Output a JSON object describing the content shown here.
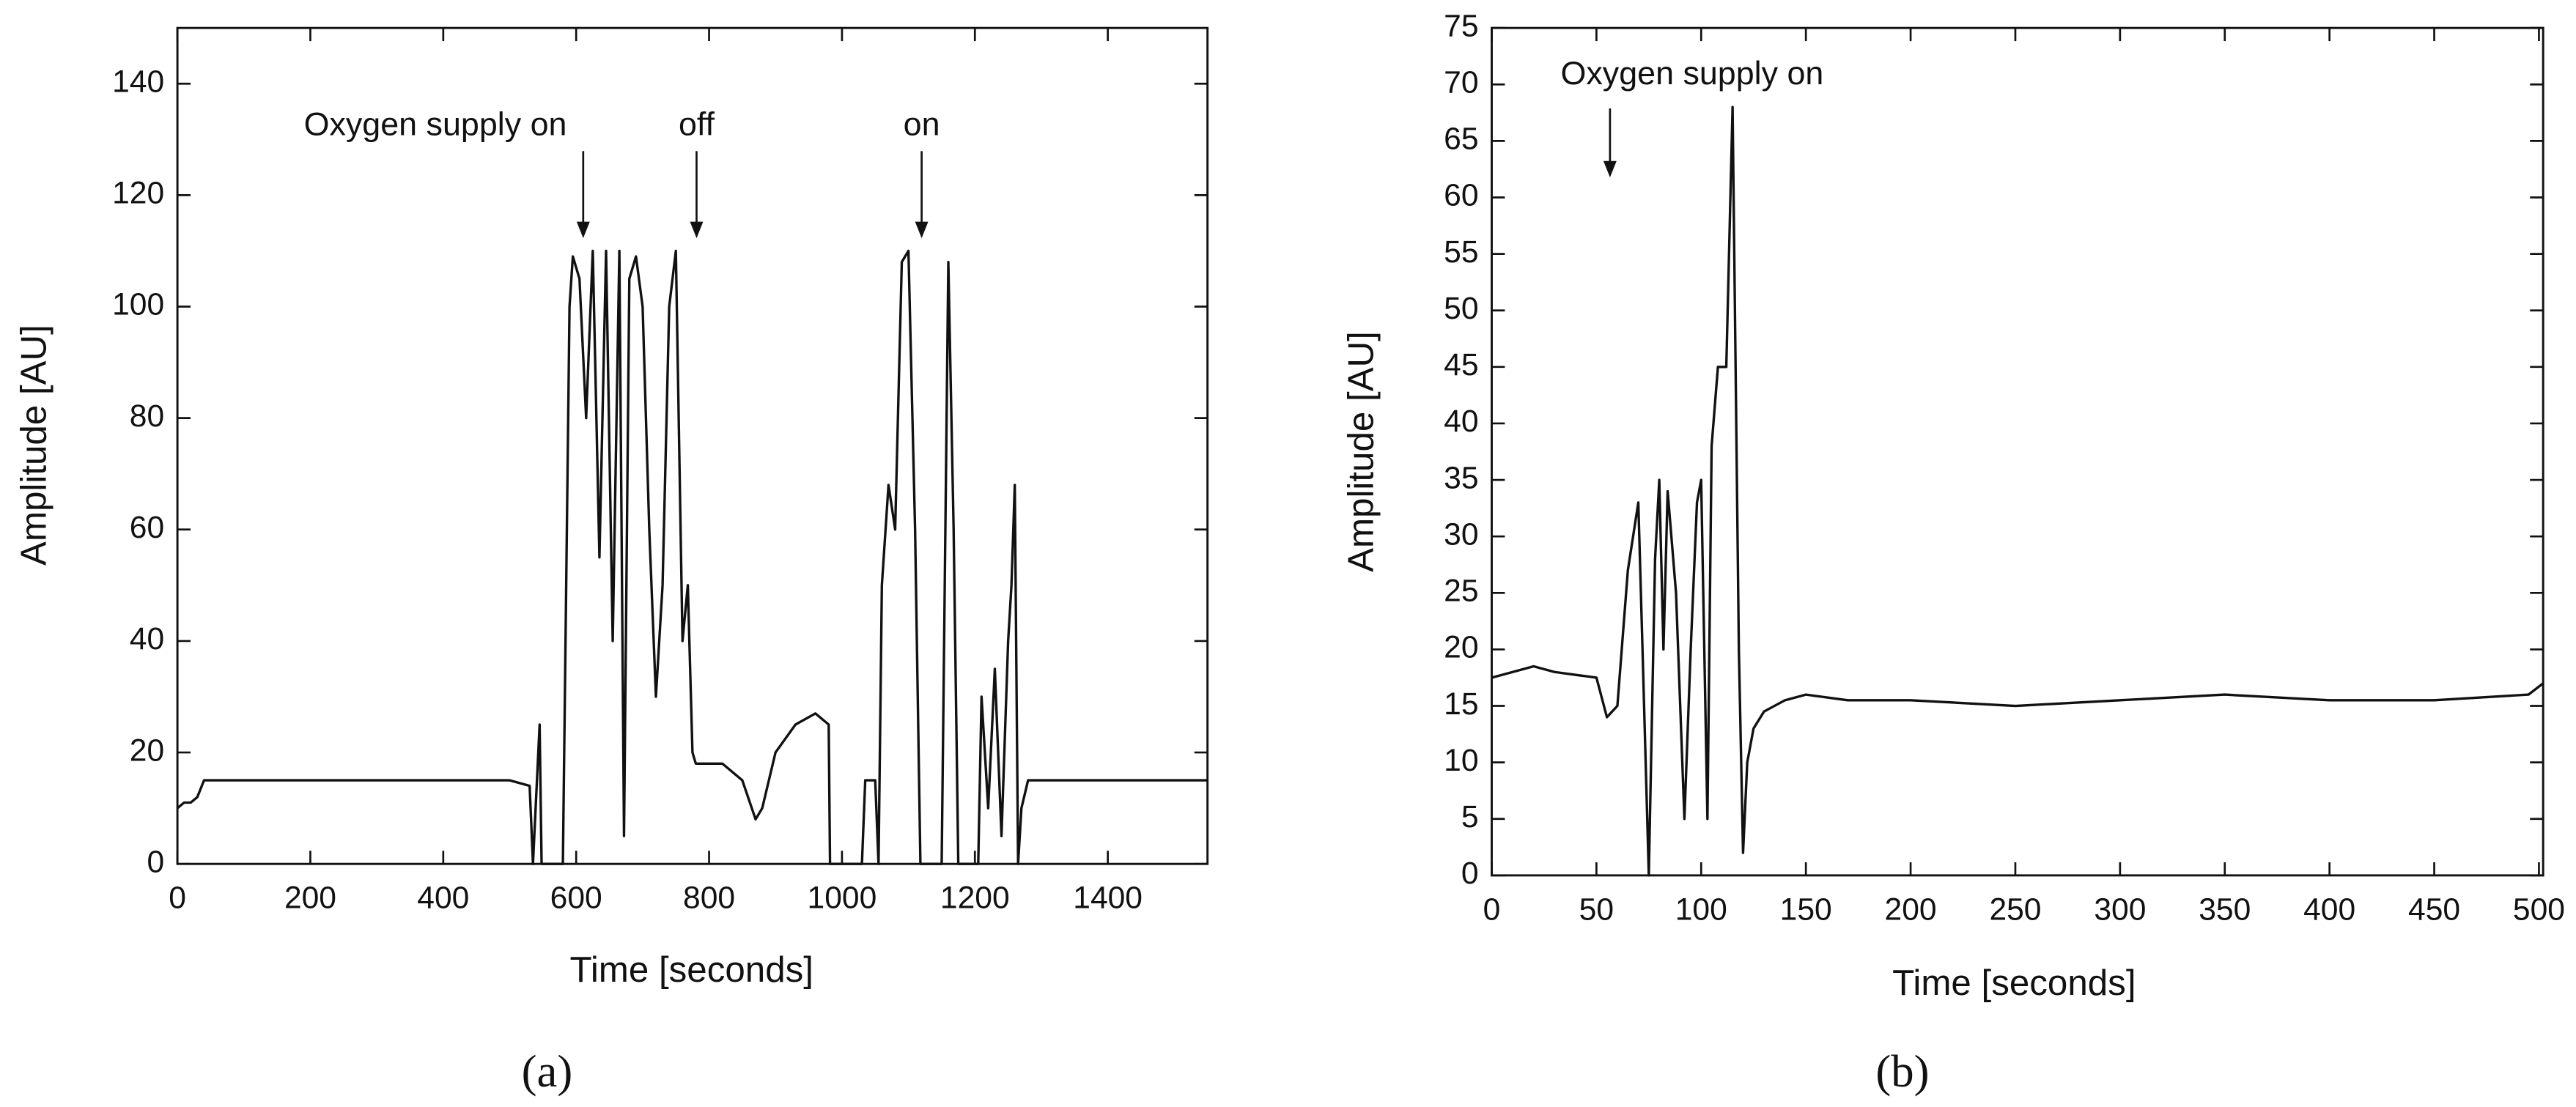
{
  "chart_data": [
    {
      "type": "line",
      "caption": "(a)",
      "xlabel": "Time [seconds]",
      "ylabel": "Amplitude [AU]",
      "annotations": [
        "Oxygen supply on",
        "off",
        "on"
      ],
      "xlim": [
        0,
        1550
      ],
      "ylim": [
        0,
        150
      ],
      "xticks": [
        0,
        200,
        400,
        600,
        800,
        1000,
        1200,
        1400
      ],
      "yticks": [
        0,
        20,
        40,
        60,
        80,
        100,
        120,
        140
      ],
      "series": [
        {
          "color": "#111111",
          "x": [
            0,
            10,
            20,
            30,
            40,
            100,
            200,
            300,
            400,
            500,
            530,
            535,
            545,
            548,
            580,
            590,
            595,
            605,
            615,
            625,
            635,
            645,
            655,
            665,
            672,
            680,
            690,
            700,
            710,
            720,
            730,
            740,
            750,
            760,
            768,
            775,
            780,
            820,
            850,
            870,
            880,
            900,
            930,
            960,
            980,
            982,
            1000,
            1030,
            1035,
            1050,
            1055,
            1060,
            1070,
            1080,
            1090,
            1100,
            1110,
            1118,
            1150,
            1160,
            1168,
            1175,
            1205,
            1210,
            1220,
            1230,
            1240,
            1250,
            1255,
            1260,
            1265,
            1270,
            1280,
            1400,
            1500,
            1550
          ],
          "values": [
            10,
            11,
            11,
            12,
            15,
            15,
            15,
            15,
            15,
            15,
            14,
            0,
            25,
            0,
            0,
            100,
            109,
            105,
            80,
            110,
            55,
            110,
            40,
            110,
            5,
            105,
            109,
            100,
            60,
            30,
            50,
            100,
            110,
            40,
            50,
            20,
            18,
            18,
            15,
            8,
            10,
            20,
            25,
            27,
            25,
            0,
            0,
            0,
            15,
            15,
            0,
            50,
            68,
            60,
            108,
            110,
            60,
            0,
            0,
            108,
            60,
            0,
            0,
            30,
            10,
            35,
            5,
            40,
            50,
            68,
            0,
            10,
            15,
            15,
            15,
            15
          ]
        }
      ]
    },
    {
      "type": "line",
      "caption": "(b)",
      "xlabel": "Time [seconds]",
      "ylabel": "Amplitude [AU]",
      "annotations": [
        "Oxygen supply on"
      ],
      "xlim": [
        0,
        502
      ],
      "ylim": [
        0,
        75
      ],
      "xticks": [
        0,
        50,
        100,
        150,
        200,
        250,
        300,
        350,
        400,
        450,
        500
      ],
      "yticks": [
        0,
        5,
        10,
        15,
        20,
        25,
        30,
        35,
        40,
        45,
        50,
        55,
        60,
        65,
        70,
        75
      ],
      "series": [
        {
          "color": "#111111",
          "x": [
            0,
            10,
            20,
            30,
            50,
            55,
            60,
            65,
            70,
            72,
            75,
            78,
            80,
            82,
            84,
            88,
            92,
            95,
            98,
            100,
            103,
            105,
            108,
            112,
            115,
            118,
            120,
            122,
            125,
            130,
            140,
            150,
            170,
            200,
            250,
            300,
            350,
            400,
            450,
            495,
            502
          ],
          "values": [
            17.5,
            18,
            18.5,
            18,
            17.5,
            14,
            15,
            27,
            33,
            20,
            0,
            28,
            35,
            20,
            34,
            25,
            5,
            20,
            33,
            35,
            5,
            38,
            45,
            45,
            68,
            20,
            2,
            10,
            13,
            14.5,
            15.5,
            16,
            15.5,
            15.5,
            15,
            15.5,
            16,
            15.5,
            15.5,
            16,
            17
          ]
        }
      ]
    }
  ]
}
